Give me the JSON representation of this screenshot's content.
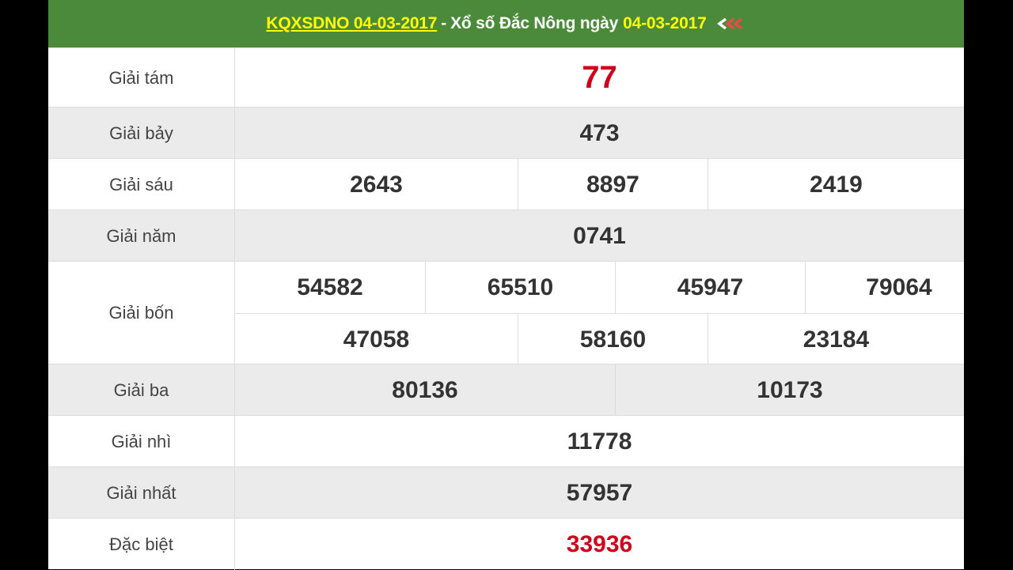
{
  "header": {
    "link_text": "KQXSDNO 04-03-2017",
    "separator": "-",
    "title_text": "Xổ số Đắc Nông ngày",
    "date": "04-03-2017",
    "arrows_icon": "double-left-arrow-icon"
  },
  "prizes": {
    "g8": {
      "label": "Giải tám",
      "values": [
        "77"
      ]
    },
    "g7": {
      "label": "Giải bảy",
      "values": [
        "473"
      ]
    },
    "g6": {
      "label": "Giải sáu",
      "values": [
        "2643",
        "8897",
        "2419"
      ]
    },
    "g5": {
      "label": "Giải năm",
      "values": [
        "0741"
      ]
    },
    "g4": {
      "label": "Giải bốn",
      "values": [
        "54582",
        "65510",
        "45947",
        "79064",
        "47058",
        "58160",
        "23184"
      ]
    },
    "g3": {
      "label": "Giải ba",
      "values": [
        "80136",
        "10173"
      ]
    },
    "g2": {
      "label": "Giải nhì",
      "values": [
        "11778"
      ]
    },
    "g1": {
      "label": "Giải nhất",
      "values": [
        "57957"
      ]
    },
    "db": {
      "label": "Đặc biệt",
      "values": [
        "33936"
      ]
    }
  },
  "colors": {
    "header_bg": "#4a8a3a",
    "highlight": "#d0021b",
    "alt_row": "#ebebeb"
  }
}
